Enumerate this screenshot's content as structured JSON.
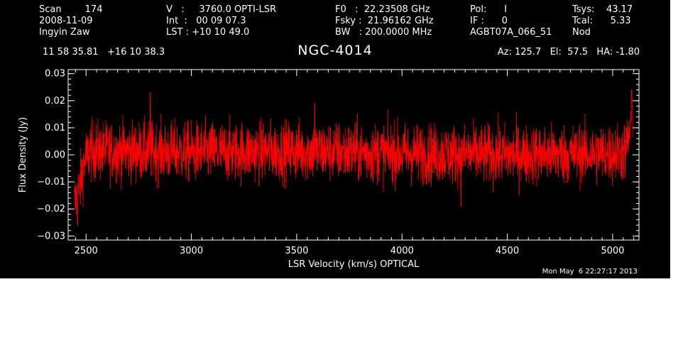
{
  "header": {
    "col1": [
      "Scan        174",
      "2008-11-09",
      "Ingyin Zaw"
    ],
    "col2": [
      "V   :     3760.0 OPTI-LSR",
      "Int  :   00 09 07.3",
      "LST : +10 10 49.0"
    ],
    "col3": [
      "F0   :  22.23508 GHz",
      "Fsky :  21.96162 GHz",
      "BW   : 200.0000 MHz"
    ],
    "col4": [
      "Pol:      I",
      "IF :      0",
      "AGBT07A_066_51"
    ],
    "col5": [
      "Tsys:    43.17",
      "Tcal:      5.33",
      "Nod"
    ]
  },
  "coordinates": "11 58 35.81   +16 10 38.3",
  "object_name": "NGC-4014",
  "pointing": "Az: 125.7   El:  57.5   HA: -1.80",
  "timestamp": "Mon May  6 22:27:17 2013",
  "colors": {
    "background": "#000000",
    "trace": "#ff0000",
    "axes": "#ffffff"
  },
  "chart_data": {
    "type": "line",
    "xlabel": "LSR Velocity (km/s) OPTICAL",
    "ylabel": "Flux Density (Jy)",
    "xlim": [
      2415,
      5125
    ],
    "ylim": [
      -0.0315,
      0.0315
    ],
    "xticks": [
      2500,
      3000,
      3500,
      4000,
      4500,
      5000
    ],
    "xtick_labels": [
      "2500",
      "3000",
      "3500",
      "4000",
      "4500",
      "5000"
    ],
    "yticks": [
      -0.03,
      -0.02,
      -0.01,
      0.0,
      0.01,
      0.02,
      0.03
    ],
    "ytick_labels": [
      "−0.03",
      "−0.02",
      "−0.01",
      "0.00",
      "0.01",
      "0.02",
      "0.03"
    ],
    "grid": false,
    "series": [
      {
        "color": "#ff0000",
        "approx": true,
        "x_start": 2445,
        "x_end": 5095,
        "noise_rms": 0.0055,
        "baseline": [
          [
            2445,
            -0.018
          ],
          [
            2470,
            -0.012
          ],
          [
            2490,
            -0.003
          ],
          [
            2520,
            0.0015
          ],
          [
            3000,
            0.001
          ],
          [
            3500,
            0.0015
          ],
          [
            4000,
            0.0005
          ],
          [
            4500,
            0.0
          ],
          [
            5000,
            0.0005
          ],
          [
            5060,
            0.001
          ],
          [
            5080,
            0.008
          ],
          [
            5095,
            0.016
          ]
        ],
        "peaks": [
          [
            2460,
            -0.026
          ],
          [
            2805,
            0.023
          ],
          [
            3585,
            0.019
          ],
          [
            4280,
            -0.019
          ],
          [
            5090,
            0.024
          ]
        ]
      }
    ]
  }
}
